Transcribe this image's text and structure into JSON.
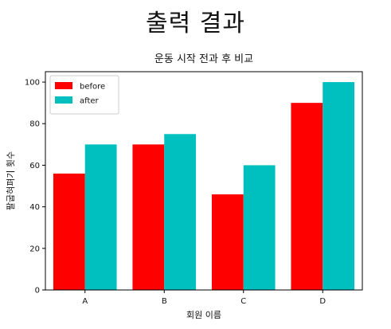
{
  "page": {
    "heading": "출력 결과"
  },
  "chart_data": {
    "type": "bar",
    "title": "운동 시작 전과 후 비교",
    "xlabel": "회원 이름",
    "ylabel": "팔굽혀펴기 횟수",
    "categories": [
      "A",
      "B",
      "C",
      "D"
    ],
    "ylim": [
      0,
      105
    ],
    "yticks": [
      0,
      20,
      40,
      60,
      80,
      100
    ],
    "grid": false,
    "legend_position": "top-left",
    "series": [
      {
        "name": "before",
        "color": "#ff0000",
        "values": [
          56,
          70,
          46,
          90
        ]
      },
      {
        "name": "after",
        "color": "#00bfbf",
        "values": [
          70,
          75,
          60,
          100
        ]
      }
    ]
  }
}
